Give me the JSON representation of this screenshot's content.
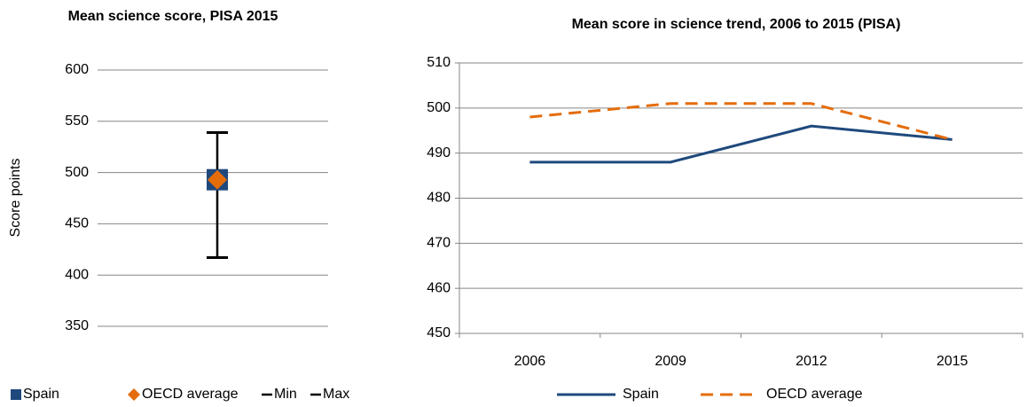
{
  "chart_data": [
    {
      "type": "range",
      "title": "Mean science score, PISA 2015",
      "y_label": "Score points",
      "ylim": [
        350,
        600
      ],
      "yticks": [
        350,
        400,
        450,
        500,
        550,
        600
      ],
      "grid": true,
      "series": [
        {
          "name": "Spain",
          "color": "#1f497d",
          "values": [
            493
          ]
        },
        {
          "name": "OECD average",
          "color": "#e46c0a",
          "values": [
            493
          ]
        },
        {
          "name": "Min",
          "color": "#000000",
          "values": [
            417
          ]
        },
        {
          "name": "Max",
          "color": "#000000",
          "values": [
            539
          ]
        }
      ]
    },
    {
      "type": "line",
      "title": "Mean score in science trend, 2006 to 2015 (PISA)",
      "categories": [
        "2006",
        "2009",
        "2012",
        "2015"
      ],
      "ylim": [
        450,
        510
      ],
      "yticks": [
        450,
        460,
        470,
        480,
        490,
        500,
        510
      ],
      "grid": true,
      "series": [
        {
          "name": "Spain",
          "color": "#1f497d",
          "style": "solid",
          "values": [
            488,
            488,
            496,
            493
          ]
        },
        {
          "name": "OECD average",
          "color": "#e46c0a",
          "style": "dashed",
          "values": [
            498,
            501,
            501,
            493
          ]
        }
      ]
    }
  ]
}
